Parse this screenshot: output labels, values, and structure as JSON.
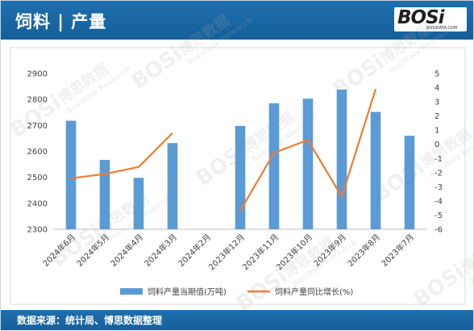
{
  "header": {
    "title": "饲料 | 产量",
    "logo_text": "BOSi",
    "logo_sub": "BOSIDATA.COM",
    "bg_color": "#1a67a5"
  },
  "footer": {
    "source": "数据来源：统计局、博思数据整理"
  },
  "chart_data": {
    "type": "bar",
    "categories": [
      "2024年6月",
      "2024年5月",
      "2024年4月",
      "2024年3月",
      "2024年2月",
      "2023年12月",
      "2023年11月",
      "2023年10月",
      "2023年9月",
      "2023年8月",
      "2023年7月"
    ],
    "series": [
      {
        "name": "饲料产量当期值(万吨)",
        "type": "bar",
        "axis": "left",
        "color": "#5b9bd5",
        "values": [
          2718,
          2567,
          2498,
          2632,
          null,
          2698,
          2785,
          2803,
          2838,
          2752,
          2660
        ]
      },
      {
        "name": "饲料产量同比增长(%)",
        "type": "line",
        "axis": "right",
        "color": "#ed7d31",
        "values": [
          -2.4,
          -2.1,
          -1.6,
          0.8,
          null,
          -4.7,
          -0.6,
          0.3,
          -3.7,
          3.9,
          null
        ]
      }
    ],
    "ylim_left": [
      2300,
      2900
    ],
    "yticks_left": [
      2300,
      2400,
      2500,
      2600,
      2700,
      2800,
      2900
    ],
    "ylim_right": [
      -6,
      5
    ],
    "yticks_right": [
      -6,
      -5,
      -4,
      -3,
      -2,
      -1,
      0,
      1,
      2,
      3,
      4,
      5
    ],
    "grid": false,
    "legend_position": "bottom"
  },
  "watermark": [
    "BOSi",
    "博思数据",
    "BosiData Research"
  ]
}
